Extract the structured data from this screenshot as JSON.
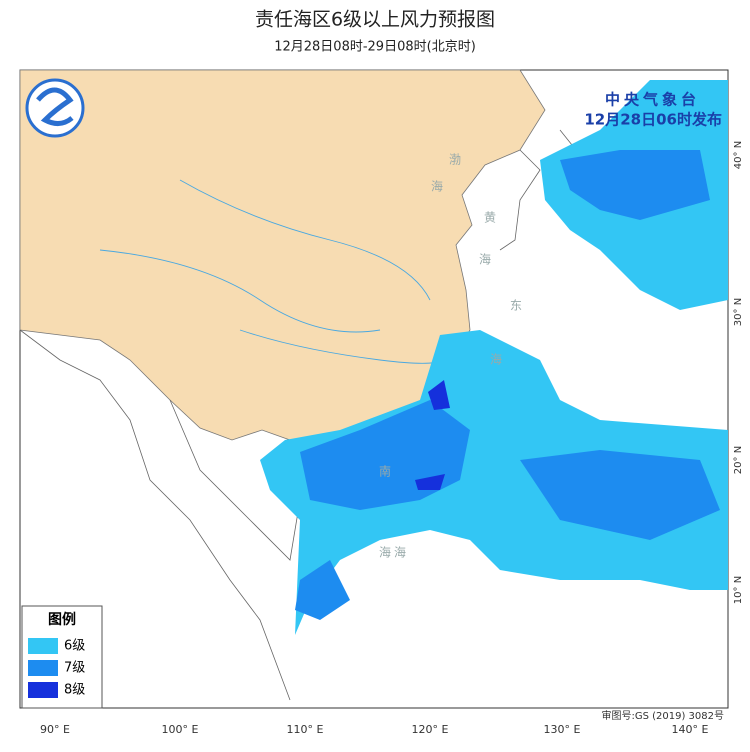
{
  "header": {
    "title": "责任海区6级以上风力预报图",
    "subtitle": "12月28日08时-29日08时(北京时)"
  },
  "publisher": {
    "name": "中央气象台",
    "time": "12月28日06时发布"
  },
  "legend": {
    "title": "图例",
    "items": [
      {
        "label": "6级",
        "color": "#33c6f4"
      },
      {
        "label": "7级",
        "color": "#1d8cf0"
      },
      {
        "label": "8级",
        "color": "#1530dc"
      }
    ]
  },
  "axes": {
    "longitude": [
      "90° E",
      "100° E",
      "110° E",
      "120° E",
      "130° E",
      "140° E"
    ],
    "latitude": [
      "40° N",
      "30° N",
      "20° N",
      "10° N"
    ]
  },
  "sea_labels": [
    "渤",
    "海",
    "黄",
    "海",
    "东",
    "海",
    "海",
    "南",
    "海"
  ],
  "review_number": "审图号:GS (2019) 3082号"
}
